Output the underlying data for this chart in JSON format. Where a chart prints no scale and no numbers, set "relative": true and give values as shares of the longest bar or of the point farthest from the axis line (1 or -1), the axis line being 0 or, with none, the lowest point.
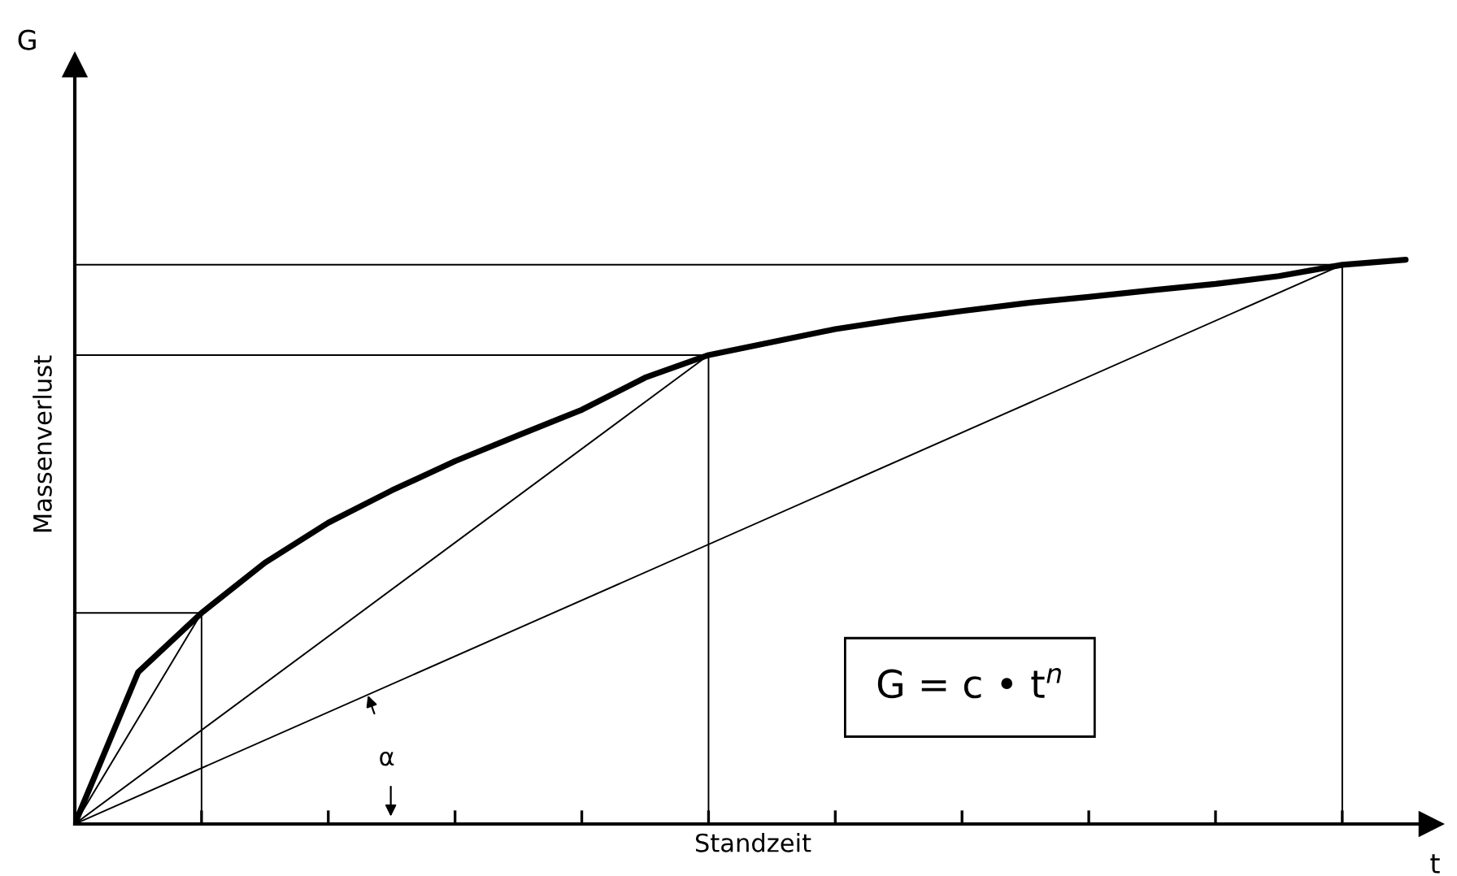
{
  "chart_data": {
    "type": "line",
    "relative": true,
    "xlabel": "Standzeit",
    "ylabel": "Massenverlust",
    "categories": [
      null,
      null,
      null,
      null,
      null,
      null,
      null,
      null,
      null,
      null,
      null,
      null,
      null,
      null,
      null,
      null,
      null,
      null,
      null,
      null,
      null,
      null
    ],
    "tick_labels": false,
    "grid": false,
    "legend": false,
    "marker": "none",
    "line_style": "solid",
    "annotations": [
      "G",
      "t",
      "G = c • t$^{n}$",
      "α"
    ],
    "series": [
      {
        "color": "#000000",
        "values": [
          0,
          0.269,
          0.374,
          0.463,
          0.534,
          0.591,
          0.643,
          0.689,
          0.734,
          0.791,
          0.831,
          0.854,
          0.877,
          0.894,
          0.909,
          0.923,
          0.934,
          0.946,
          0.957,
          0.971,
          0.991,
          1
        ]
      },
      {
        "type": "line",
        "color": "#000000",
        "values": [
          0,
          null,
          0.374,
          null,
          null,
          null,
          null,
          null,
          null,
          null,
          null,
          null,
          null,
          null,
          null,
          null,
          null,
          null,
          null,
          null,
          null,
          null
        ]
      },
      {
        "type": "line",
        "color": "#000000",
        "values": [
          0,
          null,
          null,
          null,
          null,
          null,
          null,
          null,
          null,
          null,
          0.831,
          null,
          null,
          null,
          null,
          null,
          null,
          null,
          null,
          null,
          null,
          null
        ]
      },
      {
        "type": "line",
        "color": "#000000",
        "values": [
          0,
          null,
          null,
          null,
          null,
          null,
          null,
          null,
          null,
          null,
          null,
          null,
          null,
          null,
          null,
          null,
          null,
          null,
          null,
          null,
          0.991,
          null
        ]
      },
      {
        "type": "step",
        "color": "#000000",
        "values": [
          0.374,
          null,
          0,
          null,
          null,
          null,
          null,
          null,
          null,
          null,
          null,
          null,
          null,
          null,
          null,
          null,
          null,
          null,
          null,
          null,
          null,
          null
        ]
      },
      {
        "type": "step",
        "color": "#000000",
        "values": [
          0.831,
          null,
          null,
          null,
          null,
          null,
          null,
          null,
          null,
          null,
          0,
          null,
          null,
          null,
          null,
          null,
          null,
          null,
          null,
          null,
          null,
          null
        ]
      },
      {
        "type": "step",
        "color": "#000000",
        "values": [
          0.991,
          null,
          null,
          null,
          null,
          null,
          null,
          null,
          null,
          null,
          null,
          null,
          null,
          null,
          null,
          null,
          null,
          null,
          null,
          null,
          0,
          null
        ]
      }
    ]
  }
}
